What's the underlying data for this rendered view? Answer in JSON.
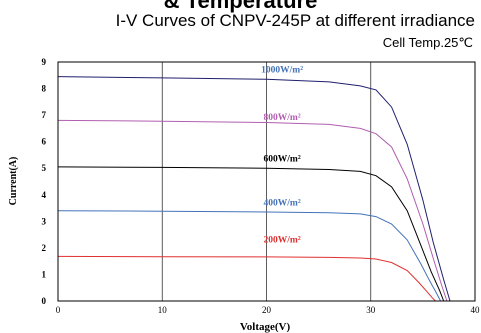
{
  "chart_data": {
    "type": "line",
    "heading": "& Temperature",
    "title": "I-V Curves of CNPV-245P at different irradiance",
    "subtitle": "Cell Temp.25℃",
    "xlabel": "Voltage(V)",
    "ylabel": "Current(A)",
    "xlim": [
      0,
      40
    ],
    "ylim": [
      0,
      9
    ],
    "xticks": [
      "0",
      "10",
      "20",
      "30",
      "40"
    ],
    "yticks": [
      "0",
      "1",
      "2",
      "3",
      "4",
      "5",
      "6",
      "7",
      "8",
      "9"
    ],
    "grid": true,
    "series": [
      {
        "name": "1000W/m²",
        "color": "#1f1f6e",
        "label_color": "#4472b8",
        "x": [
          0,
          10,
          20,
          26,
          29,
          30.5,
          32,
          33.5,
          35,
          36,
          37,
          37.6
        ],
        "y": [
          8.45,
          8.4,
          8.35,
          8.25,
          8.1,
          7.95,
          7.3,
          5.9,
          3.8,
          2.2,
          0.8,
          0
        ]
      },
      {
        "name": "800W/m²",
        "color": "#b15fb0",
        "label_color": "#b15fb0",
        "x": [
          0,
          10,
          20,
          26,
          29,
          30.5,
          32,
          33.5,
          35,
          36,
          36.8,
          37.3
        ],
        "y": [
          6.8,
          6.77,
          6.72,
          6.65,
          6.5,
          6.3,
          5.8,
          4.6,
          2.9,
          1.6,
          0.6,
          0
        ]
      },
      {
        "name": "600W/m²",
        "color": "#000000",
        "label_color": "#000000",
        "x": [
          0,
          10,
          20,
          26,
          29,
          30.5,
          32,
          33.5,
          34.8,
          35.8,
          36.6,
          37
        ],
        "y": [
          5.05,
          5.03,
          5.0,
          4.95,
          4.88,
          4.72,
          4.3,
          3.4,
          2.1,
          1.1,
          0.4,
          0
        ]
      },
      {
        "name": "400W/m²",
        "color": "#4472b8",
        "label_color": "#4472b8",
        "x": [
          0,
          10,
          20,
          26,
          29,
          30.5,
          32,
          33.5,
          34.8,
          35.6,
          36.3,
          36.7
        ],
        "y": [
          3.4,
          3.38,
          3.35,
          3.32,
          3.28,
          3.18,
          2.9,
          2.3,
          1.4,
          0.8,
          0.3,
          0
        ]
      },
      {
        "name": "200W/m²",
        "color": "#e03030",
        "label_color": "#e03030",
        "x": [
          0,
          10,
          20,
          26,
          29,
          30.5,
          32,
          33.5,
          34.6,
          35.4,
          35.9,
          36.2
        ],
        "y": [
          1.68,
          1.67,
          1.66,
          1.64,
          1.62,
          1.58,
          1.45,
          1.15,
          0.7,
          0.35,
          0.12,
          0
        ]
      }
    ],
    "series_labels": [
      {
        "series": 0,
        "x": 21.5,
        "y": 8.6
      },
      {
        "series": 1,
        "x": 21.5,
        "y": 6.82
      },
      {
        "series": 2,
        "x": 21.5,
        "y": 5.25
      },
      {
        "series": 3,
        "x": 21.5,
        "y": 3.6
      },
      {
        "series": 4,
        "x": 21.5,
        "y": 2.2
      }
    ]
  }
}
